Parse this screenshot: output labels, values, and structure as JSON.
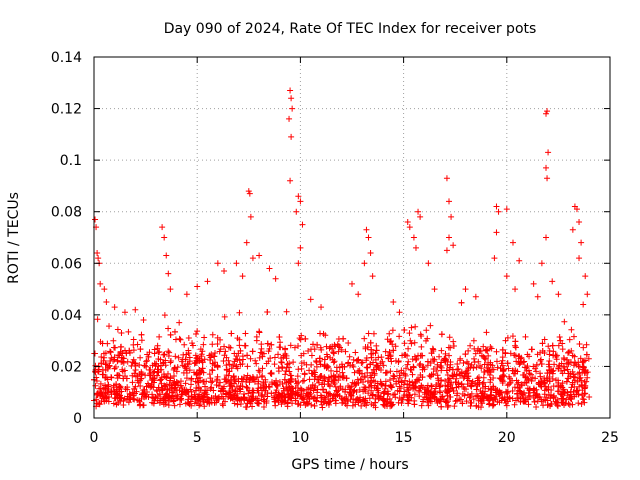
{
  "chart_data": {
    "type": "scatter",
    "title": "Day 090 of 2024, Rate Of TEC Index for receiver pots",
    "xlabel": "GPS time / hours",
    "ylabel": "ROTI / TECUs",
    "xlim": [
      0,
      25
    ],
    "ylim": [
      0,
      0.14
    ],
    "x_ticks": [
      0,
      5,
      10,
      15,
      20,
      25
    ],
    "x_tick_labels": [
      "0",
      "5",
      "10",
      "15",
      "20",
      "25"
    ],
    "y_ticks": [
      0,
      0.02,
      0.04,
      0.06,
      0.08,
      0.1,
      0.12,
      0.14
    ],
    "y_tick_labels": [
      "0",
      "0.02",
      "0.04",
      "0.06",
      "0.08",
      "0.1",
      "0.12",
      "0.14"
    ],
    "grid": true,
    "marker": "+",
    "marker_color": "#ff0000",
    "series": [
      {
        "name": "ROTI",
        "note": "dense band of points between about 0.005 and 0.03 TECU/min across 0-24 h, with scattered spikes",
        "points": [
          [
            0.05,
            0.077
          ],
          [
            0.1,
            0.074
          ],
          [
            0.15,
            0.064
          ],
          [
            0.2,
            0.062
          ],
          [
            0.25,
            0.06
          ],
          [
            0.3,
            0.052
          ],
          [
            0.5,
            0.05
          ],
          [
            0.6,
            0.045
          ],
          [
            1.0,
            0.043
          ],
          [
            1.5,
            0.041
          ],
          [
            2.0,
            0.042
          ],
          [
            2.4,
            0.038
          ],
          [
            3.3,
            0.074
          ],
          [
            3.4,
            0.07
          ],
          [
            3.5,
            0.063
          ],
          [
            3.6,
            0.056
          ],
          [
            3.7,
            0.05
          ],
          [
            4.5,
            0.048
          ],
          [
            5.0,
            0.051
          ],
          [
            5.5,
            0.053
          ],
          [
            6.0,
            0.06
          ],
          [
            6.3,
            0.057
          ],
          [
            6.9,
            0.06
          ],
          [
            7.2,
            0.055
          ],
          [
            7.5,
            0.088
          ],
          [
            7.55,
            0.087
          ],
          [
            7.6,
            0.078
          ],
          [
            7.4,
            0.068
          ],
          [
            7.7,
            0.062
          ],
          [
            8.0,
            0.063
          ],
          [
            8.5,
            0.058
          ],
          [
            8.8,
            0.054
          ],
          [
            9.5,
            0.127
          ],
          [
            9.55,
            0.124
          ],
          [
            9.6,
            0.12
          ],
          [
            9.45,
            0.116
          ],
          [
            9.55,
            0.109
          ],
          [
            9.5,
            0.092
          ],
          [
            9.9,
            0.086
          ],
          [
            10.0,
            0.084
          ],
          [
            9.8,
            0.08
          ],
          [
            10.1,
            0.075
          ],
          [
            10.0,
            0.066
          ],
          [
            9.9,
            0.06
          ],
          [
            10.5,
            0.046
          ],
          [
            11.0,
            0.043
          ],
          [
            12.5,
            0.052
          ],
          [
            12.8,
            0.048
          ],
          [
            13.2,
            0.073
          ],
          [
            13.3,
            0.07
          ],
          [
            13.4,
            0.064
          ],
          [
            13.1,
            0.06
          ],
          [
            13.5,
            0.055
          ],
          [
            14.5,
            0.045
          ],
          [
            14.8,
            0.041
          ],
          [
            15.2,
            0.076
          ],
          [
            15.3,
            0.074
          ],
          [
            15.7,
            0.08
          ],
          [
            15.8,
            0.078
          ],
          [
            15.5,
            0.07
          ],
          [
            15.6,
            0.066
          ],
          [
            16.2,
            0.06
          ],
          [
            16.5,
            0.05
          ],
          [
            17.1,
            0.093
          ],
          [
            17.2,
            0.084
          ],
          [
            17.3,
            0.078
          ],
          [
            17.2,
            0.07
          ],
          [
            17.4,
            0.067
          ],
          [
            17.1,
            0.065
          ],
          [
            18.0,
            0.05
          ],
          [
            18.5,
            0.047
          ],
          [
            19.5,
            0.082
          ],
          [
            19.6,
            0.08
          ],
          [
            19.5,
            0.072
          ],
          [
            19.4,
            0.062
          ],
          [
            20.0,
            0.081
          ],
          [
            20.3,
            0.068
          ],
          [
            20.6,
            0.061
          ],
          [
            20.0,
            0.055
          ],
          [
            20.4,
            0.05
          ],
          [
            21.3,
            0.052
          ],
          [
            21.5,
            0.047
          ],
          [
            21.7,
            0.06
          ],
          [
            21.9,
            0.118
          ],
          [
            21.95,
            0.119
          ],
          [
            22.0,
            0.103
          ],
          [
            21.9,
            0.097
          ],
          [
            21.95,
            0.093
          ],
          [
            21.9,
            0.07
          ],
          [
            22.2,
            0.053
          ],
          [
            22.5,
            0.048
          ],
          [
            23.3,
            0.082
          ],
          [
            23.4,
            0.081
          ],
          [
            23.5,
            0.076
          ],
          [
            23.2,
            0.073
          ],
          [
            23.6,
            0.068
          ],
          [
            23.5,
            0.062
          ],
          [
            23.8,
            0.055
          ],
          [
            23.9,
            0.048
          ],
          [
            23.7,
            0.044
          ]
        ]
      }
    ],
    "band": {
      "x_range": [
        0,
        24
      ],
      "y_floor_range": [
        0.004,
        0.008
      ],
      "y_typical_top": [
        0.022,
        0.035
      ],
      "density_points": 2600,
      "seed": 90
    }
  }
}
